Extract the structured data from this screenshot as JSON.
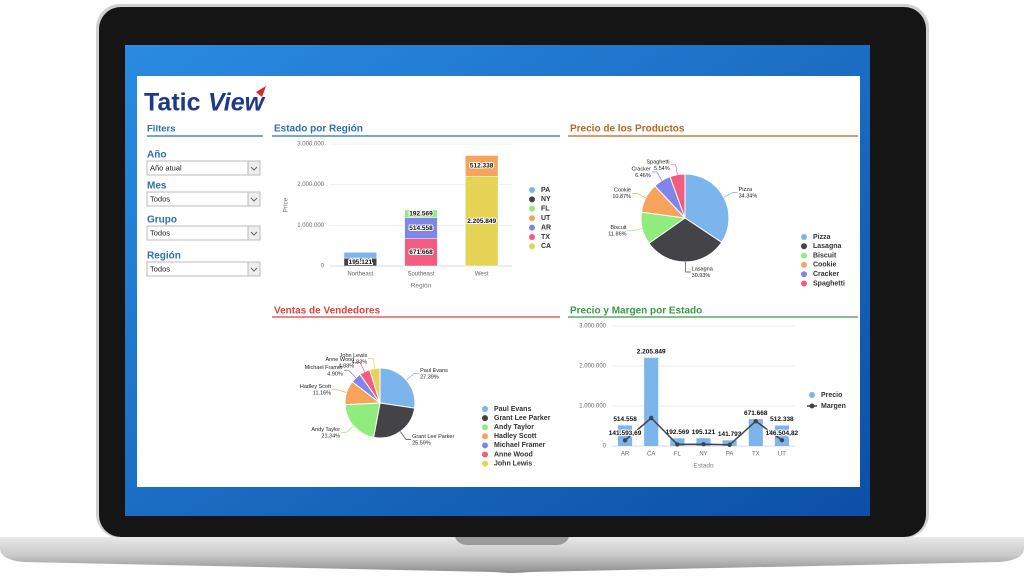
{
  "logo": [
    "Tatic",
    "View"
  ],
  "filters": {
    "title": "Filters",
    "fields": [
      {
        "label": "Año",
        "value": "Año atual"
      },
      {
        "label": "Mes",
        "value": "Todos"
      },
      {
        "label": "Grupo",
        "value": "Todos"
      },
      {
        "label": "Región",
        "value": "Todos"
      }
    ]
  },
  "chart_data": [
    {
      "type": "bar",
      "stacked": true,
      "title": "Estado por Región",
      "ylabel": "Price",
      "xlabel": "Región",
      "categories": [
        "Northeast",
        "Southeast",
        "West"
      ],
      "series": [
        {
          "name": "PA",
          "color": "#7cb5ec",
          "values": [
            141793,
            null,
            null
          ],
          "value_labels": [
            null,
            null,
            null
          ]
        },
        {
          "name": "NY",
          "color": "#434348",
          "values": [
            195121,
            null,
            null
          ],
          "value_labels": [
            "195.121",
            null,
            null
          ]
        },
        {
          "name": "FL",
          "color": "#90ed7d",
          "values": [
            null,
            192569,
            null
          ],
          "value_labels": [
            null,
            "192.569",
            null
          ]
        },
        {
          "name": "UT",
          "color": "#f7a35c",
          "values": [
            null,
            null,
            512338
          ],
          "value_labels": [
            null,
            null,
            "512.338"
          ]
        },
        {
          "name": "AR",
          "color": "#8085e9",
          "values": [
            null,
            514558,
            null
          ],
          "value_labels": [
            null,
            "514.558",
            null
          ]
        },
        {
          "name": "TX",
          "color": "#f15c80",
          "values": [
            null,
            671668,
            null
          ],
          "value_labels": [
            null,
            "671.668",
            null
          ]
        },
        {
          "name": "CA",
          "color": "#e4d354",
          "values": [
            null,
            null,
            2205849
          ],
          "value_labels": [
            null,
            null,
            "2.205.849"
          ]
        }
      ],
      "ylim": [
        0,
        3000000
      ],
      "yticks": [
        0,
        {
          "value": 1000000,
          "label": "1.000.000"
        },
        {
          "value": 2000000,
          "label": "2.000.000"
        },
        {
          "value": 3000000,
          "label": "3.000.000"
        }
      ],
      "grid": true,
      "legend": "right"
    },
    {
      "type": "pie",
      "title": "Precio de los Productos",
      "categories": [
        "Pizza",
        "Lasagna",
        "Biscuit",
        "Cookie",
        "Cracker",
        "Spaghetti"
      ],
      "values": [
        34.34,
        30.93,
        11.86,
        10.87,
        6.46,
        5.54
      ],
      "value_labels": [
        "34.34%",
        "30.93%",
        "11.86%",
        "10.87%",
        "6.46%",
        "5.54%"
      ],
      "colors": [
        "#7cb5ec",
        "#434348",
        "#90ed7d",
        "#f7a35c",
        "#8085e9",
        "#f15c80"
      ],
      "legend": "right"
    },
    {
      "type": "pie",
      "title": "Ventas de Vendedores",
      "categories": [
        "Paul Evans",
        "Grant Lee Parker",
        "Andy Taylor",
        "Hadley Scott",
        "Michael Framer",
        "Anne Wood",
        "John Lewis"
      ],
      "values": [
        27.39,
        25.59,
        21.34,
        11.16,
        4.9,
        4.88,
        4.83
      ],
      "value_labels": [
        "27.39%",
        "25.59%",
        "21.34%",
        "11.16%",
        "4.90%",
        "4.88%",
        "4.83%"
      ],
      "colors": [
        "#7cb5ec",
        "#434348",
        "#90ed7d",
        "#f7a35c",
        "#8085e9",
        "#f15c80",
        "#e4d354"
      ],
      "legend": "right"
    },
    {
      "type": "combo",
      "title": "Precio y Margen por Estado",
      "xlabel": "Estado",
      "categories": [
        "AR",
        "CA",
        "FL",
        "NY",
        "PA",
        "TX",
        "UT"
      ],
      "series": [
        {
          "name": "Precio",
          "type": "bar",
          "color": "#7cb5ec",
          "values": [
            514558,
            2205849,
            192569,
            195121,
            141793,
            671668,
            512338
          ],
          "value_labels": [
            "514.558",
            "2.205.849",
            "192.569",
            "195.121",
            "141.793",
            "671.668",
            "512.338"
          ]
        },
        {
          "name": "Margen",
          "type": "line",
          "color": "#434348",
          "values": [
            141593.69,
            700000,
            40000,
            45000,
            30000,
            620000,
            146504.82
          ],
          "value_labels": [
            "141.593,69",
            null,
            null,
            null,
            null,
            null,
            "146.504,82"
          ]
        }
      ],
      "ylim": [
        0,
        3000000
      ],
      "yticks": [
        0,
        {
          "value": 1000000,
          "label": "1.000.000"
        },
        {
          "value": 2000000,
          "label": "2.000.000"
        },
        {
          "value": 3000000,
          "label": "3.000.000"
        }
      ],
      "grid": true,
      "legend": "right"
    }
  ]
}
